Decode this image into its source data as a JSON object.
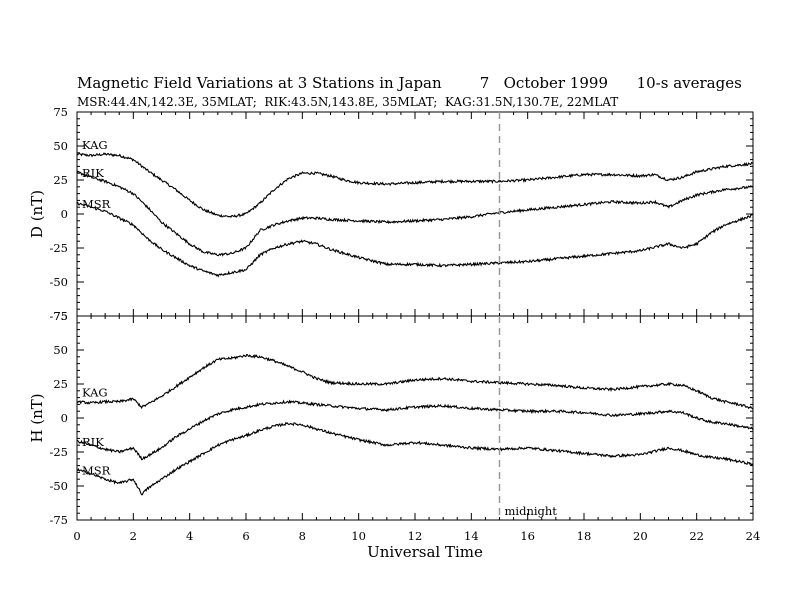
{
  "chart_data": {
    "type": "line",
    "title": "Magnetic Field Variations at 3 Stations in Japan        7   October 1999      10-s averages",
    "subtitle": "MSR:44.4N,142.3E, 35MLAT;  RIK:43.5N,143.8E, 35MLAT;  KAG:31.5N,130.7E, 22MLAT",
    "xlabel": "Universal Time",
    "xlim": [
      0,
      24
    ],
    "xticks": [
      "0",
      "2",
      "4",
      "6",
      "8",
      "10",
      "12",
      "14",
      "16",
      "18",
      "20",
      "22",
      "24"
    ],
    "grid": false,
    "annotation": {
      "text": "midnight",
      "x": 15,
      "style": "dashed vertical line"
    },
    "panels": [
      {
        "ylabel": "D (nT)",
        "ylim": [
          -75,
          75
        ],
        "yticks": [
          "75",
          "50",
          "25",
          "0",
          "-25",
          "-50",
          "-75"
        ],
        "series": [
          {
            "name": "KAG",
            "x": [
              0,
              0.5,
              1,
              1.5,
              2,
              2.5,
              3,
              3.5,
              4,
              4.5,
              5,
              5.5,
              6,
              6.5,
              7,
              7.5,
              8,
              8.5,
              9,
              9.5,
              10,
              11,
              12,
              13,
              14,
              15,
              16,
              17,
              18,
              19,
              20,
              20.5,
              21,
              21.5,
              22,
              23,
              24
            ],
            "y": [
              44,
              43,
              44,
              43,
              40,
              32,
              25,
              18,
              10,
              3,
              -1,
              -2,
              0,
              8,
              18,
              26,
              30,
              30,
              28,
              25,
              23,
              22,
              23,
              24,
              24,
              24,
              25,
              27,
              29,
              29,
              28,
              29,
              25,
              27,
              31,
              35,
              37
            ]
          },
          {
            "name": "RIK",
            "x": [
              0,
              0.5,
              1,
              1.5,
              2,
              2.5,
              3,
              3.5,
              4,
              4.5,
              5,
              5.5,
              6,
              6.5,
              7,
              7.5,
              8,
              8.5,
              9,
              10,
              11,
              12,
              13,
              14,
              15,
              16,
              17,
              18,
              19,
              20,
              20.5,
              21,
              21.5,
              22,
              23,
              24
            ],
            "y": [
              31,
              27,
              24,
              20,
              15,
              5,
              -6,
              -14,
              -22,
              -28,
              -30,
              -29,
              -25,
              -12,
              -8,
              -5,
              -3,
              -3,
              -4,
              -5,
              -6,
              -5,
              -4,
              -2,
              1,
              3,
              5,
              7,
              9,
              8,
              9,
              5,
              10,
              14,
              18,
              20
            ]
          },
          {
            "name": "MSR",
            "x": [
              0,
              0.5,
              1,
              1.5,
              2,
              2.5,
              3,
              3.5,
              4,
              4.5,
              5,
              5.5,
              6,
              6.5,
              7,
              7.5,
              8,
              8.5,
              9,
              10,
              11,
              12,
              13,
              14,
              15,
              16,
              17,
              18,
              19,
              20,
              21,
              21.5,
              22,
              22.5,
              23,
              24
            ],
            "y": [
              8,
              5,
              2,
              -3,
              -8,
              -18,
              -26,
              -32,
              -38,
              -42,
              -45,
              -43,
              -41,
              -30,
              -25,
              -22,
              -20,
              -22,
              -26,
              -32,
              -37,
              -37,
              -38,
              -37,
              -36,
              -35,
              -33,
              -31,
              -29,
              -27,
              -22,
              -25,
              -22,
              -14,
              -8,
              -1
            ]
          }
        ]
      },
      {
        "ylabel": "H (nT)",
        "ylim": [
          -75,
          75
        ],
        "yticks": [
          "75",
          "50",
          "25",
          "0",
          "-25",
          "-50",
          "-75"
        ],
        "series": [
          {
            "name": "KAG",
            "x": [
              0,
              0.5,
              1,
              1.5,
              2,
              2.3,
              2.5,
              3,
              3.5,
              4,
              4.5,
              5,
              5.5,
              6,
              6.5,
              7,
              7.5,
              8,
              8.5,
              9,
              10,
              11,
              12,
              13,
              14,
              15,
              16,
              17,
              18,
              19,
              20,
              21,
              21.5,
              22,
              22.5,
              23,
              23.5,
              24
            ],
            "y": [
              12,
              11,
              12,
              12,
              14,
              8,
              10,
              16,
              23,
              30,
              37,
              43,
              44,
              46,
              45,
              42,
              38,
              34,
              29,
              26,
              25,
              25,
              28,
              29,
              27,
              26,
              25,
              24,
              22,
              21,
              23,
              25,
              24,
              20,
              15,
              12,
              10,
              7
            ]
          },
          {
            "name": "RIK",
            "x": [
              0,
              0.5,
              1,
              1.5,
              2,
              2.3,
              2.5,
              3,
              3.5,
              4,
              4.5,
              5,
              5.5,
              6,
              6.5,
              7,
              7.5,
              8,
              8.5,
              9,
              10,
              11,
              12,
              13,
              14,
              15,
              16,
              17,
              18,
              19,
              20,
              21,
              21.5,
              22,
              22.5,
              23,
              23.5,
              24
            ],
            "y": [
              -17,
              -20,
              -23,
              -25,
              -22,
              -30,
              -28,
              -22,
              -14,
              -8,
              -2,
              3,
              6,
              8,
              10,
              11,
              12,
              11,
              10,
              9,
              7,
              6,
              8,
              9,
              7,
              6,
              5,
              5,
              4,
              2,
              3,
              5,
              4,
              0,
              -3,
              -4,
              -6,
              -8
            ]
          },
          {
            "name": "MSR",
            "x": [
              0,
              0.5,
              1,
              1.5,
              2,
              2.3,
              2.5,
              3,
              3.5,
              4,
              4.5,
              5,
              5.5,
              6,
              6.5,
              7,
              7.5,
              8,
              8.5,
              9,
              10,
              11,
              12,
              13,
              14,
              15,
              16,
              17,
              18,
              19,
              20,
              21,
              21.5,
              22,
              22.5,
              23,
              23.5,
              24
            ],
            "y": [
              -38,
              -41,
              -45,
              -48,
              -45,
              -56,
              -52,
              -45,
              -38,
              -32,
              -26,
              -20,
              -16,
              -13,
              -9,
              -6,
              -4,
              -5,
              -8,
              -11,
              -16,
              -20,
              -18,
              -20,
              -22,
              -23,
              -22,
              -24,
              -26,
              -28,
              -27,
              -22,
              -24,
              -27,
              -29,
              -30,
              -32,
              -34
            ]
          }
        ]
      }
    ]
  }
}
